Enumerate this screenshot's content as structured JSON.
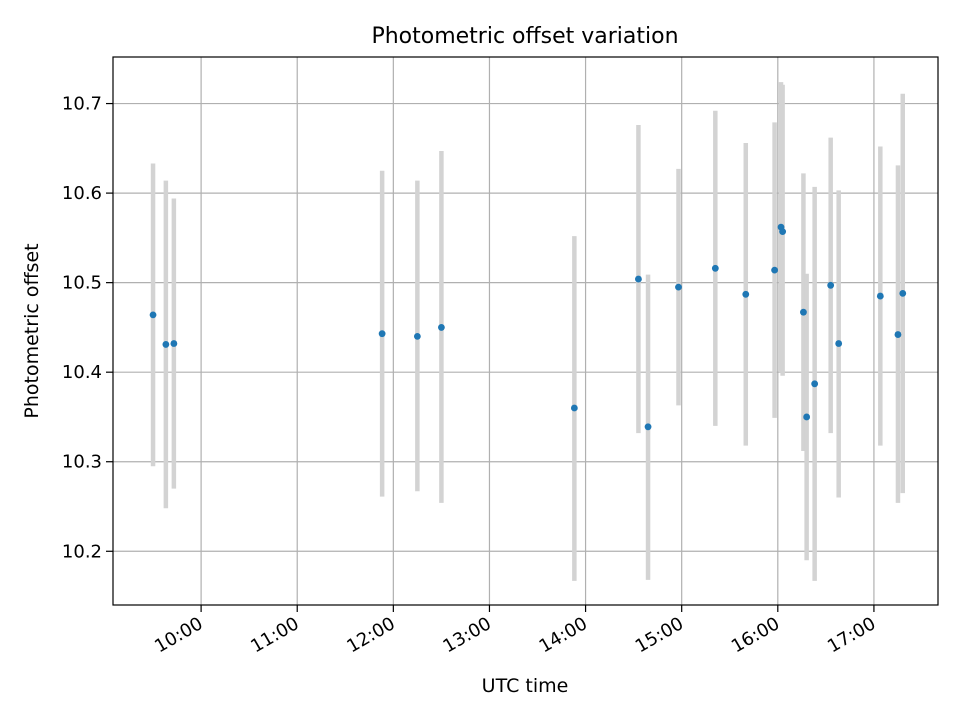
{
  "chart_data": {
    "type": "scatter",
    "title": "Photometric offset variation",
    "xlabel": "UTC time",
    "ylabel": "Photometric offset",
    "x_ticks": [
      "10:00",
      "11:00",
      "12:00",
      "13:00",
      "14:00",
      "15:00",
      "16:00",
      "17:00"
    ],
    "y_ticks": [
      "10.2",
      "10.3",
      "10.4",
      "10.5",
      "10.6",
      "10.7"
    ],
    "xlim": [
      "09:05",
      "17:40"
    ],
    "ylim": [
      10.14,
      10.752
    ],
    "grid": true,
    "legend": "none",
    "colors": {
      "marker": "#1f77b4",
      "errorbar": "#d3d3d3",
      "grid": "#b0b0b0"
    },
    "points": [
      {
        "x": "09:30",
        "y": 10.464,
        "y_low": 10.295,
        "y_high": 10.633
      },
      {
        "x": "09:38",
        "y": 10.431,
        "y_low": 10.248,
        "y_high": 10.614
      },
      {
        "x": "09:43",
        "y": 10.432,
        "y_low": 10.27,
        "y_high": 10.594
      },
      {
        "x": "11:53",
        "y": 10.443,
        "y_low": 10.261,
        "y_high": 10.625
      },
      {
        "x": "12:15",
        "y": 10.44,
        "y_low": 10.267,
        "y_high": 10.614
      },
      {
        "x": "12:30",
        "y": 10.45,
        "y_low": 10.254,
        "y_high": 10.647
      },
      {
        "x": "13:53",
        "y": 10.36,
        "y_low": 10.167,
        "y_high": 10.552
      },
      {
        "x": "14:33",
        "y": 10.504,
        "y_low": 10.332,
        "y_high": 10.676
      },
      {
        "x": "14:39",
        "y": 10.339,
        "y_low": 10.168,
        "y_high": 10.509
      },
      {
        "x": "14:58",
        "y": 10.495,
        "y_low": 10.363,
        "y_high": 10.627
      },
      {
        "x": "15:21",
        "y": 10.516,
        "y_low": 10.34,
        "y_high": 10.692
      },
      {
        "x": "15:40",
        "y": 10.487,
        "y_low": 10.318,
        "y_high": 10.656
      },
      {
        "x": "15:58",
        "y": 10.514,
        "y_low": 10.349,
        "y_high": 10.679
      },
      {
        "x": "16:02",
        "y": 10.562,
        "y_low": 10.4,
        "y_high": 10.724
      },
      {
        "x": "16:03",
        "y": 10.557,
        "y_low": 10.396,
        "y_high": 10.721
      },
      {
        "x": "16:16",
        "y": 10.467,
        "y_low": 10.312,
        "y_high": 10.622
      },
      {
        "x": "16:18",
        "y": 10.35,
        "y_low": 10.19,
        "y_high": 10.51
      },
      {
        "x": "16:23",
        "y": 10.387,
        "y_low": 10.167,
        "y_high": 10.607
      },
      {
        "x": "16:33",
        "y": 10.497,
        "y_low": 10.332,
        "y_high": 10.662
      },
      {
        "x": "16:38",
        "y": 10.432,
        "y_low": 10.26,
        "y_high": 10.603
      },
      {
        "x": "17:04",
        "y": 10.485,
        "y_low": 10.318,
        "y_high": 10.652
      },
      {
        "x": "17:15",
        "y": 10.442,
        "y_low": 10.254,
        "y_high": 10.631
      },
      {
        "x": "17:18",
        "y": 10.488,
        "y_low": 10.265,
        "y_high": 10.711
      }
    ]
  }
}
